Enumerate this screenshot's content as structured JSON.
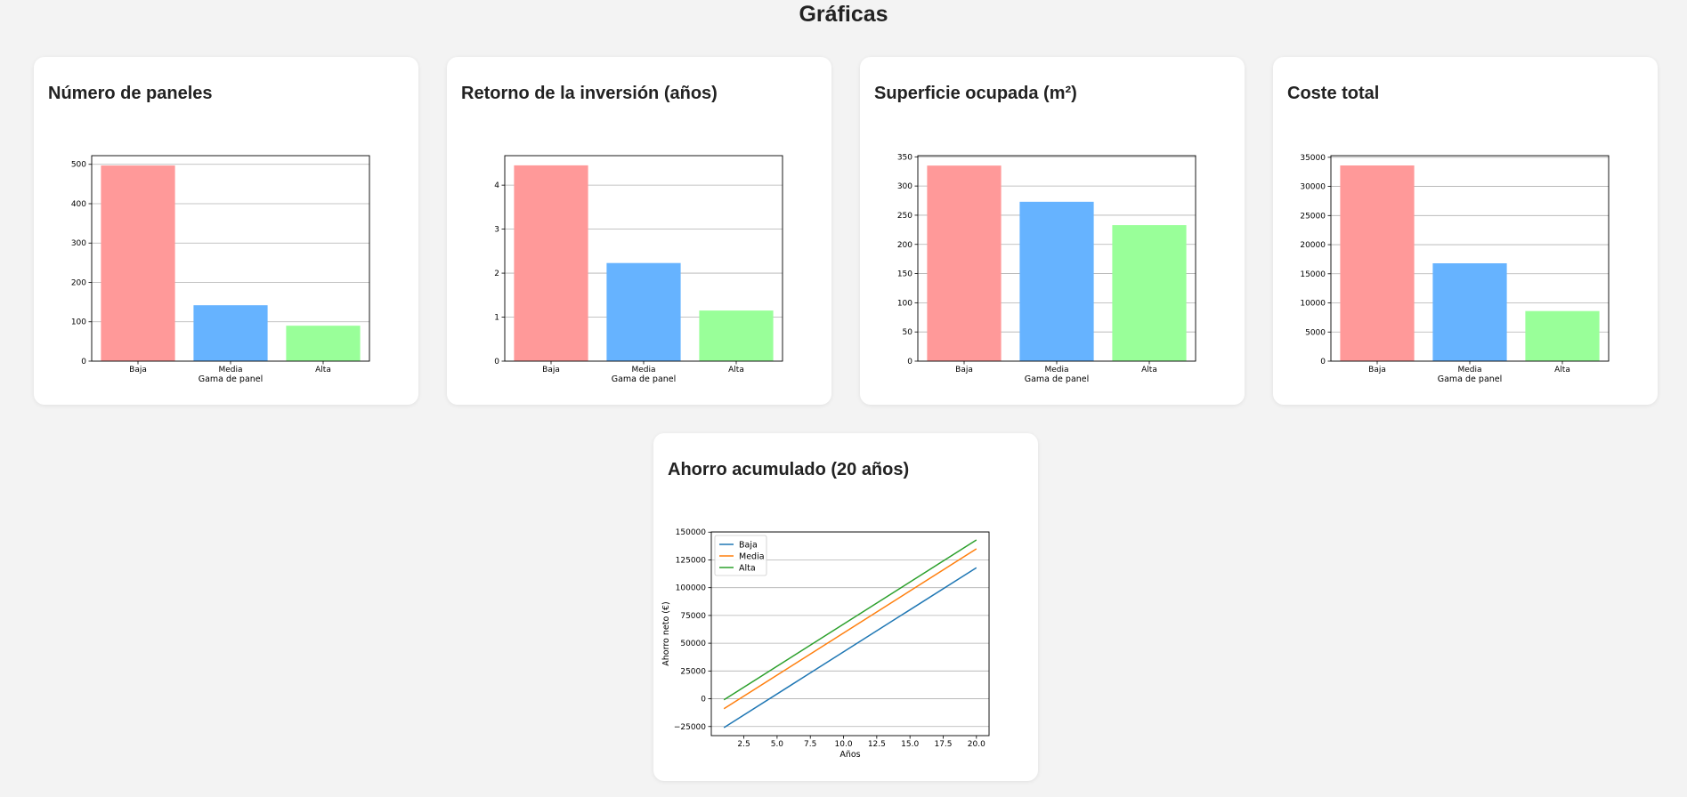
{
  "page": {
    "title": "Gráficas"
  },
  "charts": [
    {
      "card_title": "Número de paneles",
      "chart_data": {
        "type": "bar",
        "title": "Número de paneles",
        "categories": [
          "Baja",
          "Media",
          "Alta"
        ],
        "values": [
          497,
          142,
          90
        ],
        "colors": [
          "#ff9999",
          "#66b3ff",
          "#99ff99"
        ],
        "xlabel": "Gama de panel",
        "ylabel": "",
        "ylim": [
          0,
          522
        ],
        "yticks": [
          0,
          100,
          200,
          300,
          400,
          500
        ],
        "ytick_labels": [
          "0",
          "100",
          "200",
          "300",
          "400",
          "500"
        ],
        "grid": "horizontal"
      }
    },
    {
      "card_title": "Retorno de la inversión (años)",
      "chart_data": {
        "type": "bar",
        "title": "Retorno de la inversión (años)",
        "categories": [
          "Baja",
          "Media",
          "Alta"
        ],
        "values": [
          4.45,
          2.23,
          1.15
        ],
        "colors": [
          "#ff9999",
          "#66b3ff",
          "#99ff99"
        ],
        "xlabel": "Gama de panel",
        "ylabel": "",
        "ylim": [
          0,
          4.67
        ],
        "yticks": [
          0,
          1,
          2,
          3,
          4
        ],
        "ytick_labels": [
          "0",
          "1",
          "2",
          "3",
          "4"
        ],
        "grid": "horizontal"
      }
    },
    {
      "card_title": "Superficie ocupada (m²)",
      "chart_data": {
        "type": "bar",
        "title": "Superficie ocupada (m²)",
        "categories": [
          "Baja",
          "Media",
          "Alta"
        ],
        "values": [
          335,
          273,
          233
        ],
        "colors": [
          "#ff9999",
          "#66b3ff",
          "#99ff99"
        ],
        "xlabel": "Gama de panel",
        "ylabel": "",
        "ylim": [
          0,
          352
        ],
        "yticks": [
          0,
          50,
          100,
          150,
          200,
          250,
          300,
          350
        ],
        "ytick_labels": [
          "0",
          "50",
          "100",
          "150",
          "200",
          "250",
          "300",
          "350"
        ],
        "grid": "horizontal"
      }
    },
    {
      "card_title": "Coste total",
      "chart_data": {
        "type": "bar",
        "title": "Coste total",
        "categories": [
          "Baja",
          "Media",
          "Alta"
        ],
        "values": [
          33600,
          16800,
          8600
        ],
        "colors": [
          "#ff9999",
          "#66b3ff",
          "#99ff99"
        ],
        "xlabel": "Gama de panel",
        "ylabel": "",
        "ylim": [
          0,
          35280
        ],
        "yticks": [
          0,
          5000,
          10000,
          15000,
          20000,
          25000,
          30000,
          35000
        ],
        "ytick_labels": [
          "0",
          "5000",
          "10000",
          "15000",
          "20000",
          "25000",
          "30000",
          "35000"
        ],
        "grid": "horizontal"
      }
    },
    {
      "card_title": "Ahorro acumulado (20 años)",
      "chart_data": {
        "type": "line",
        "title": "Ahorro acumulado (20 años)",
        "x": [
          1,
          20
        ],
        "series": [
          {
            "name": "Baja",
            "color": "#1f77b4",
            "values": [
              -26000,
              118000
            ]
          },
          {
            "name": "Media",
            "color": "#ff7f0e",
            "values": [
              -9000,
              135000
            ]
          },
          {
            "name": "Alta",
            "color": "#2ca02c",
            "values": [
              -1000,
              143000
            ]
          }
        ],
        "xlabel": "Años",
        "ylabel": "Ahorro neto (€)",
        "xlim": [
          0.05,
          20.95
        ],
        "ylim": [
          -33200,
          150200
        ],
        "xticks": [
          2.5,
          5.0,
          7.5,
          10.0,
          12.5,
          15.0,
          17.5,
          20.0
        ],
        "xtick_labels": [
          "2.5",
          "5.0",
          "7.5",
          "10.0",
          "12.5",
          "15.0",
          "17.5",
          "20.0"
        ],
        "yticks": [
          -25000,
          0,
          25000,
          50000,
          75000,
          100000,
          125000,
          150000
        ],
        "ytick_labels": [
          "−25000",
          "0",
          "25000",
          "50000",
          "75000",
          "100000",
          "125000",
          "150000"
        ],
        "grid": "horizontal",
        "legend_position": "top-left"
      }
    }
  ]
}
